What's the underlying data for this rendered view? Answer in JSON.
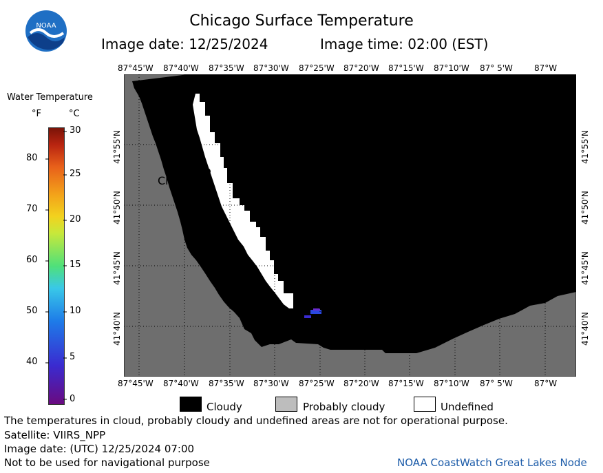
{
  "header": {
    "title": "Chicago Surface Temperature",
    "image_date": "Image date: 12/25/2024",
    "image_time": "Image time: 02:00 (EST)"
  },
  "colorbar": {
    "title": "Water Temperature",
    "unit_f": "°F",
    "unit_c": "°C",
    "f_ticks": [
      "80",
      "70",
      "60",
      "50",
      "40"
    ],
    "c_ticks": [
      "30",
      "25",
      "20",
      "15",
      "10",
      "5",
      "0"
    ]
  },
  "map": {
    "city_label": "Chicago",
    "lon_labels": [
      "87°45'W",
      "87°40'W",
      "87°35'W",
      "87°30'W",
      "87°25'W",
      "87°20'W",
      "87°15'W",
      "87°10'W",
      "87° 5'W",
      "87°W"
    ],
    "lat_labels": [
      "41°55'N",
      "41°50'N",
      "41°45'N",
      "41°40'N"
    ],
    "colors": {
      "land": "#6e6e6e",
      "cloudy": "#000000",
      "undefined": "#ffffff",
      "probably_cloudy": "#bdbdbd"
    }
  },
  "legend": {
    "cloudy": "Cloudy",
    "probably_cloudy": "Probably cloudy",
    "undefined": "Undefined"
  },
  "footer": {
    "note": "The temperatures in cloud, probably cloudy and undefined areas are not for operational purpose.",
    "satellite": "Satellite: VIIRS_NPP",
    "utc_date": "Image date: (UTC) 12/25/2024  07:00",
    "nav": "Not to be used for navigational purpose",
    "credit": "NOAA CoastWatch Great Lakes Node"
  },
  "logo": {
    "text": "NOAA"
  }
}
